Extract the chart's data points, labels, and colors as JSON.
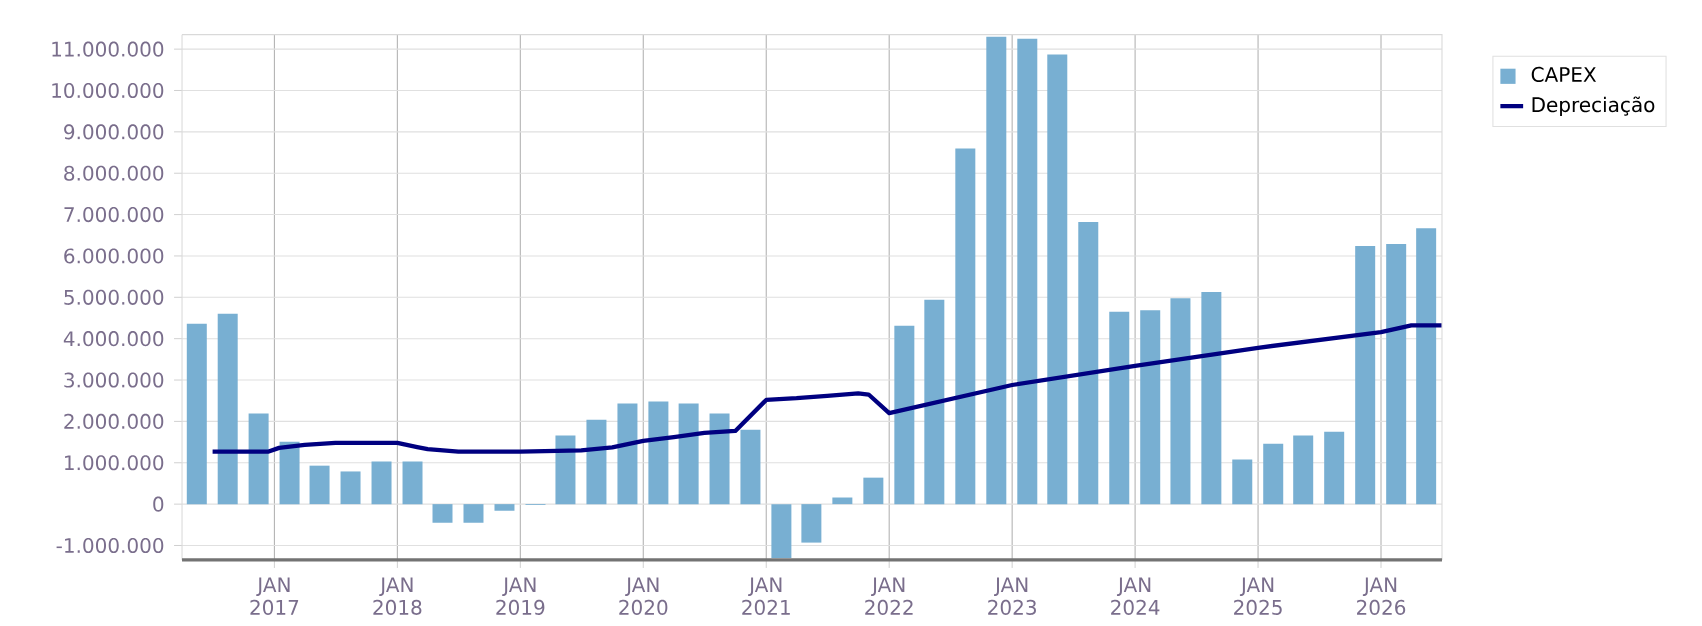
{
  "chart_data": {
    "type": "bar",
    "x": [
      "2016-05-15",
      "2016-08-15",
      "2016-11-15",
      "2017-02-15",
      "2017-05-15",
      "2017-08-15",
      "2017-11-15",
      "2018-02-15",
      "2018-05-15",
      "2018-08-15",
      "2018-11-15",
      "2019-02-15",
      "2019-05-15",
      "2019-08-15",
      "2019-11-15",
      "2020-02-15",
      "2020-05-15",
      "2020-08-15",
      "2020-11-15",
      "2021-02-15",
      "2021-05-15",
      "2021-08-15",
      "2021-11-15",
      "2022-02-15",
      "2022-05-15",
      "2022-08-15",
      "2022-11-15",
      "2023-02-15",
      "2023-05-15",
      "2023-08-15",
      "2023-11-15",
      "2024-02-15",
      "2024-05-15",
      "2024-08-15",
      "2024-11-15",
      "2025-02-15",
      "2025-05-15",
      "2025-08-15",
      "2025-11-15",
      "2026-02-15",
      "2026-05-15"
    ],
    "series": [
      {
        "name": "CAPEX",
        "color": "#78afd2",
        "values": [
          4360000,
          4600000,
          2190000,
          1510000,
          930000,
          790000,
          1030000,
          1030000,
          -450000,
          -450000,
          -160000,
          -20000,
          1660000,
          2040000,
          2430000,
          2480000,
          2430000,
          2190000,
          1800000,
          -1300000,
          -930000,
          160000,
          640000,
          4310000,
          4940000,
          8600000,
          11300000,
          11250000,
          10870000,
          6820000,
          4650000,
          4690000,
          4980000,
          5130000,
          1080000,
          1460000,
          1660000,
          1750000,
          6240000,
          6290000,
          6670000
        ]
      },
      {
        "name": "Depreciação",
        "type": "line",
        "color": "#000080",
        "x": [
          "2016-07-01",
          "2016-12-15",
          "2017-01-15",
          "2017-04-01",
          "2017-07-01",
          "2018-01-01",
          "2018-03-01",
          "2018-04-01",
          "2018-07-01",
          "2019-01-01",
          "2019-07-01",
          "2019-10-01",
          "2020-01-01",
          "2020-04-01",
          "2020-07-01",
          "2020-10-01",
          "2021-01-01",
          "2021-04-01",
          "2021-07-01",
          "2021-10-01",
          "2021-11-01",
          "2022-01-01",
          "2023-01-01",
          "2024-01-01",
          "2025-01-01",
          "2026-01-01",
          "2026-04-01",
          "2026-07-01"
        ],
        "values": [
          1270000,
          1270000,
          1360000,
          1430000,
          1480000,
          1480000,
          1380000,
          1330000,
          1270000,
          1270000,
          1300000,
          1370000,
          1530000,
          1620000,
          1720000,
          1770000,
          2520000,
          2560000,
          2620000,
          2680000,
          2650000,
          2200000,
          2880000,
          3340000,
          3780000,
          4160000,
          4320000,
          4320000
        ]
      }
    ],
    "xlim": [
      "2016-04-01",
      "2026-07-01"
    ],
    "xticks": [
      {
        "value": "2017-01-01",
        "label": "JAN 2017"
      },
      {
        "value": "2018-01-01",
        "label": "JAN 2018"
      },
      {
        "value": "2019-01-01",
        "label": "JAN 2019"
      },
      {
        "value": "2020-01-01",
        "label": "JAN 2020"
      },
      {
        "value": "2021-01-01",
        "label": "JAN 2021"
      },
      {
        "value": "2022-01-01",
        "label": "JAN 2022"
      },
      {
        "value": "2023-01-01",
        "label": "JAN 2023"
      },
      {
        "value": "2024-01-01",
        "label": "JAN 2024"
      },
      {
        "value": "2025-01-01",
        "label": "JAN 2025"
      },
      {
        "value": "2026-01-01",
        "label": "JAN 2026"
      }
    ],
    "ylim": [
      -1350000,
      11350000
    ],
    "yticks": [
      {
        "value": -1000000,
        "label": "-1.000.000"
      },
      0,
      {
        "value": 1000000,
        "label": "1.000.000"
      },
      {
        "value": 2000000,
        "label": "2.000.000"
      },
      {
        "value": 3000000,
        "label": "3.000.000"
      },
      {
        "value": 4000000,
        "label": "4.000.000"
      },
      {
        "value": 5000000,
        "label": "5.000.000"
      },
      {
        "value": 6000000,
        "label": "6.000.000"
      },
      {
        "value": 7000000,
        "label": "7.000.000"
      },
      {
        "value": 8000000,
        "label": "8.000.000"
      },
      {
        "value": 9000000,
        "label": "9.000.000"
      },
      {
        "value": 10000000,
        "label": "10.000.000"
      },
      {
        "value": 11000000,
        "label": "11.000.000"
      }
    ],
    "grid": true,
    "legend": "top right"
  }
}
